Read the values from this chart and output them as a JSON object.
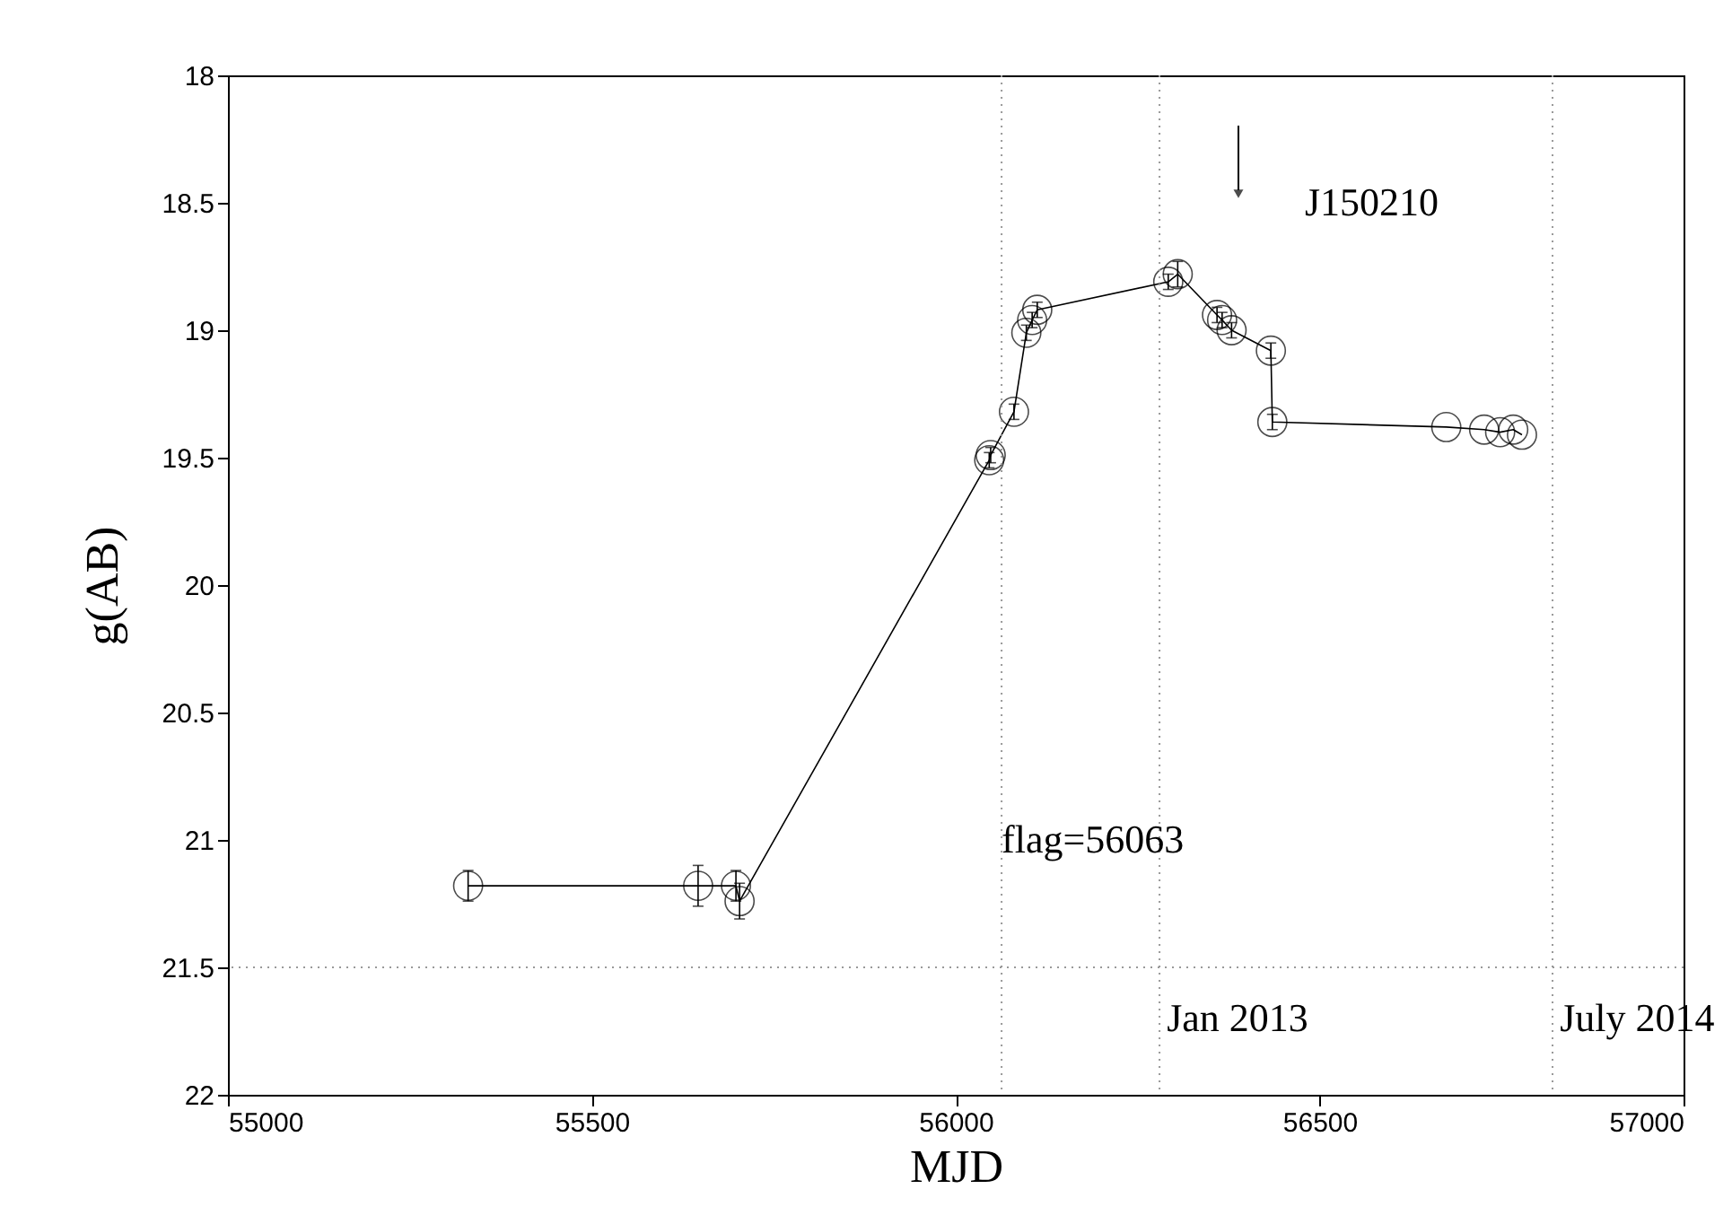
{
  "chart_data": {
    "type": "line",
    "xlabel": "MJD",
    "ylabel": "g(AB)",
    "x": [
      55330,
      55646,
      55698,
      55703,
      56046,
      56048,
      56080,
      56097,
      56105,
      56112,
      56292,
      56305,
      56359,
      56366,
      56379,
      56433,
      56435,
      56674,
      56726,
      56748,
      56766,
      56778
    ],
    "series": [
      {
        "color": "#000000",
        "values": [
          21.18,
          21.18,
          21.18,
          21.24,
          19.51,
          19.49,
          19.32,
          19.01,
          18.96,
          18.92,
          18.81,
          18.78,
          18.94,
          18.96,
          19.0,
          19.08,
          19.36,
          19.38,
          19.39,
          19.4,
          19.39,
          19.41
        ],
        "errors": [
          0.06,
          0.08,
          0.06,
          0.07,
          0.03,
          0.03,
          0.03,
          0.03,
          0.03,
          0.03,
          0.03,
          0.05,
          0.03,
          0.03,
          0.03,
          0.03,
          0.03,
          null,
          null,
          null,
          null,
          null
        ]
      }
    ],
    "xlim": [
      55000,
      57000
    ],
    "xticks": [
      55000,
      55500,
      56000,
      56500,
      57000
    ],
    "ylim": [
      22,
      18
    ],
    "yticks": [
      18,
      18.5,
      19,
      19.5,
      20,
      20.5,
      21,
      21.5,
      22
    ],
    "marker": "circle",
    "line_style": "solid",
    "grid": false,
    "ref_lines": [
      {
        "axis": "x",
        "value": 56063,
        "color": "#999999",
        "line_style": "dotted"
      },
      {
        "axis": "x",
        "value": 56280,
        "color": "#999999",
        "line_style": "dotted"
      },
      {
        "axis": "x",
        "value": 56820,
        "color": "#999999",
        "line_style": "dotted"
      },
      {
        "axis": "y",
        "value": 21.5,
        "color": "#999999",
        "line_style": "dotted"
      }
    ],
    "annotations": [
      "J150210",
      {
        "text": "flag=56063",
        "x": 56063,
        "y": 21.0
      },
      {
        "text": "Jan 2013",
        "x": 56290,
        "y": 21.7
      },
      {
        "text": "July 2014",
        "x": 56830,
        "y": 21.7
      }
    ]
  }
}
